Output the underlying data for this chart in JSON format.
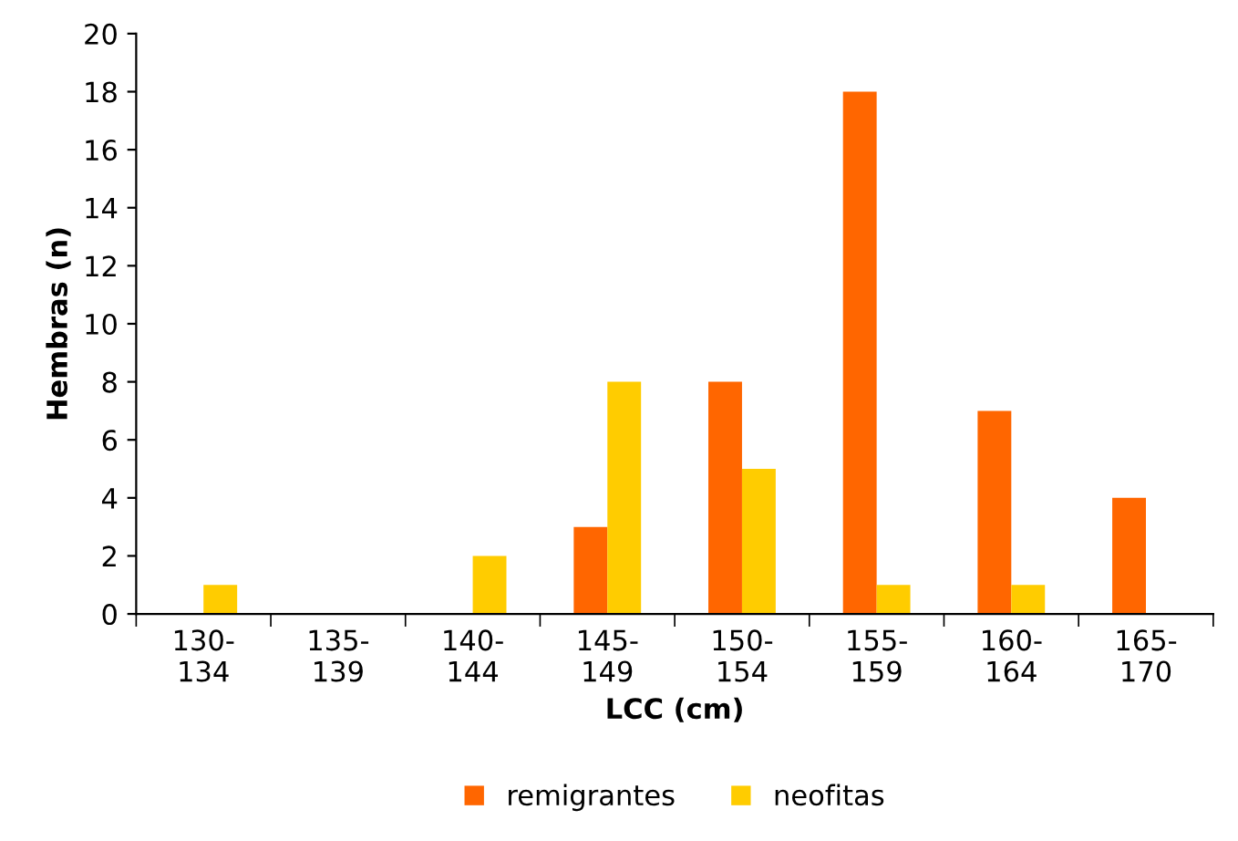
{
  "chart_data": {
    "type": "bar",
    "xlabel": "LCC (cm)",
    "ylabel": "Hembras (n)",
    "categories": [
      "130-\n134",
      "135-\n139",
      "140-\n144",
      "145-\n149",
      "150-\n154",
      "155-\n159",
      "160-\n164",
      "165-\n170"
    ],
    "series": [
      {
        "name": "remigrantes",
        "color": "#ff6600",
        "values": [
          0,
          0,
          0,
          3,
          8,
          18,
          7,
          4
        ]
      },
      {
        "name": "neofitas",
        "color": "#ffcc00",
        "values": [
          1,
          0,
          2,
          8,
          5,
          1,
          1,
          0
        ]
      }
    ],
    "ylim": [
      0,
      20
    ],
    "yticks": [
      0,
      2,
      4,
      6,
      8,
      10,
      12,
      14,
      16,
      18,
      20
    ],
    "grid": false,
    "legend": "bottom"
  }
}
